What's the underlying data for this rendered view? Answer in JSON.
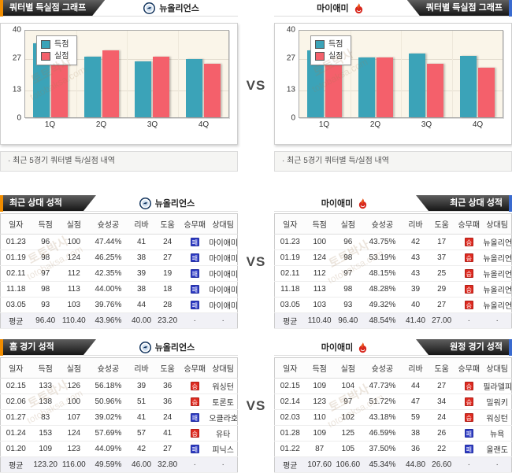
{
  "vs_label": "VS",
  "teams": {
    "left": {
      "name": "뉴올리언스"
    },
    "right": {
      "name": "마이애미"
    }
  },
  "section_titles": {
    "quarter_graph": "쿼터별 득실점 그래프",
    "recent_vs": "최근 상대 성적",
    "home_games": "홈 경기 성적",
    "away_games": "원정 경기 성적"
  },
  "chart_footer_note": "· 최근 5경기 쿼터별 득/실점 내역",
  "chart_data": [
    {
      "type": "bar",
      "team": "뉴올리언스",
      "categories": [
        "1Q",
        "2Q",
        "3Q",
        "4Q"
      ],
      "series": [
        {
          "name": "득점",
          "values": [
            33.6,
            27.4,
            25.4,
            26.4
          ]
        },
        {
          "name": "실점",
          "values": [
            26.2,
            30.4,
            27.4,
            24.2
          ]
        }
      ],
      "ylim": [
        0,
        40
      ],
      "yticks": [
        40,
        27,
        13,
        0
      ],
      "grid": true,
      "legend_position": "top-left"
    },
    {
      "type": "bar",
      "team": "마이애미",
      "categories": [
        "1Q",
        "2Q",
        "3Q",
        "4Q"
      ],
      "series": [
        {
          "name": "득점",
          "values": [
            30.2,
            27.2,
            29.0,
            28.0
          ]
        },
        {
          "name": "실점",
          "values": [
            27.2,
            27.2,
            24.4,
            22.4
          ]
        }
      ],
      "ylim": [
        0,
        40
      ],
      "yticks": [
        40,
        27,
        13,
        0
      ],
      "grid": true,
      "legend_position": "top-left"
    }
  ],
  "badges": {
    "win": "승",
    "loss": "패"
  },
  "tables": {
    "columns": [
      "일자",
      "득점",
      "실점",
      "슛성공",
      "리바",
      "도움",
      "승무패",
      "상대팀"
    ],
    "recent_vs_left": {
      "rows": [
        {
          "date": "01.23",
          "scored": "96",
          "allowed": "100",
          "fg": "47.44%",
          "reb": "41",
          "ast": "24",
          "result": "loss",
          "opp": "마이애미"
        },
        {
          "date": "01.19",
          "scored": "98",
          "allowed": "124",
          "fg": "46.25%",
          "reb": "38",
          "ast": "27",
          "result": "loss",
          "opp": "마이애미"
        },
        {
          "date": "02.11",
          "scored": "97",
          "allowed": "112",
          "fg": "42.35%",
          "reb": "39",
          "ast": "19",
          "result": "loss",
          "opp": "마이애미"
        },
        {
          "date": "11.18",
          "scored": "98",
          "allowed": "113",
          "fg": "44.00%",
          "reb": "38",
          "ast": "18",
          "result": "loss",
          "opp": "마이애미"
        },
        {
          "date": "03.05",
          "scored": "93",
          "allowed": "103",
          "fg": "39.76%",
          "reb": "44",
          "ast": "28",
          "result": "loss",
          "opp": "마이애미"
        }
      ],
      "avg": [
        "평균",
        "96.40",
        "110.40",
        "43.96%",
        "40.00",
        "23.20",
        "·",
        "·"
      ]
    },
    "recent_vs_right": {
      "rows": [
        {
          "date": "01.23",
          "scored": "100",
          "allowed": "96",
          "fg": "43.75%",
          "reb": "42",
          "ast": "17",
          "result": "win",
          "opp": "뉴올리언"
        },
        {
          "date": "01.19",
          "scored": "124",
          "allowed": "98",
          "fg": "53.19%",
          "reb": "43",
          "ast": "37",
          "result": "win",
          "opp": "뉴올리언"
        },
        {
          "date": "02.11",
          "scored": "112",
          "allowed": "97",
          "fg": "48.15%",
          "reb": "43",
          "ast": "25",
          "result": "win",
          "opp": "뉴올리언"
        },
        {
          "date": "11.18",
          "scored": "113",
          "allowed": "98",
          "fg": "48.28%",
          "reb": "39",
          "ast": "29",
          "result": "win",
          "opp": "뉴올리언"
        },
        {
          "date": "03.05",
          "scored": "103",
          "allowed": "93",
          "fg": "49.32%",
          "reb": "40",
          "ast": "27",
          "result": "win",
          "opp": "뉴올리언"
        }
      ],
      "avg": [
        "평균",
        "110.40",
        "96.40",
        "48.54%",
        "41.40",
        "27.00",
        "·",
        "·"
      ]
    },
    "home_left": {
      "rows": [
        {
          "date": "02.15",
          "scored": "133",
          "allowed": "126",
          "fg": "56.18%",
          "reb": "39",
          "ast": "36",
          "result": "win",
          "opp": "워싱턴"
        },
        {
          "date": "02.06",
          "scored": "138",
          "allowed": "100",
          "fg": "50.96%",
          "reb": "51",
          "ast": "36",
          "result": "win",
          "opp": "토론토"
        },
        {
          "date": "01.27",
          "scored": "83",
          "allowed": "107",
          "fg": "39.02%",
          "reb": "41",
          "ast": "24",
          "result": "loss",
          "opp": "오클라호"
        },
        {
          "date": "01.24",
          "scored": "153",
          "allowed": "124",
          "fg": "57.69%",
          "reb": "57",
          "ast": "41",
          "result": "win",
          "opp": "유타"
        },
        {
          "date": "01.20",
          "scored": "109",
          "allowed": "123",
          "fg": "44.09%",
          "reb": "42",
          "ast": "27",
          "result": "loss",
          "opp": "피닉스"
        }
      ],
      "avg": [
        "평균",
        "123.20",
        "116.00",
        "49.59%",
        "46.00",
        "32.80",
        "·",
        "·"
      ]
    },
    "away_right": {
      "rows": [
        {
          "date": "02.15",
          "scored": "109",
          "allowed": "104",
          "fg": "47.73%",
          "reb": "44",
          "ast": "27",
          "result": "win",
          "opp": "필라델피"
        },
        {
          "date": "02.14",
          "scored": "123",
          "allowed": "97",
          "fg": "51.72%",
          "reb": "47",
          "ast": "34",
          "result": "win",
          "opp": "밀워키"
        },
        {
          "date": "02.03",
          "scored": "110",
          "allowed": "102",
          "fg": "43.18%",
          "reb": "59",
          "ast": "24",
          "result": "win",
          "opp": "워싱턴"
        },
        {
          "date": "01.28",
          "scored": "109",
          "allowed": "125",
          "fg": "46.59%",
          "reb": "38",
          "ast": "26",
          "result": "loss",
          "opp": "뉴욕"
        },
        {
          "date": "01.22",
          "scored": "87",
          "allowed": "105",
          "fg": "37.50%",
          "reb": "36",
          "ast": "22",
          "result": "loss",
          "opp": "올랜도"
        }
      ],
      "avg": [
        "평균",
        "107.60",
        "106.60",
        "45.34%",
        "44.80",
        "26.60",
        "·",
        "·"
      ]
    }
  },
  "watermark": {
    "line1": "토토박사",
    "line2": "totobaksa.com"
  },
  "colors": {
    "accent_orange": "#f18d00",
    "accent_blue": "#3a6bd0",
    "bar_scored": "#3ba3b8",
    "bar_allowed": "#f4606b",
    "badge_win": "#df2b21",
    "badge_loss": "#2f3cc4"
  }
}
